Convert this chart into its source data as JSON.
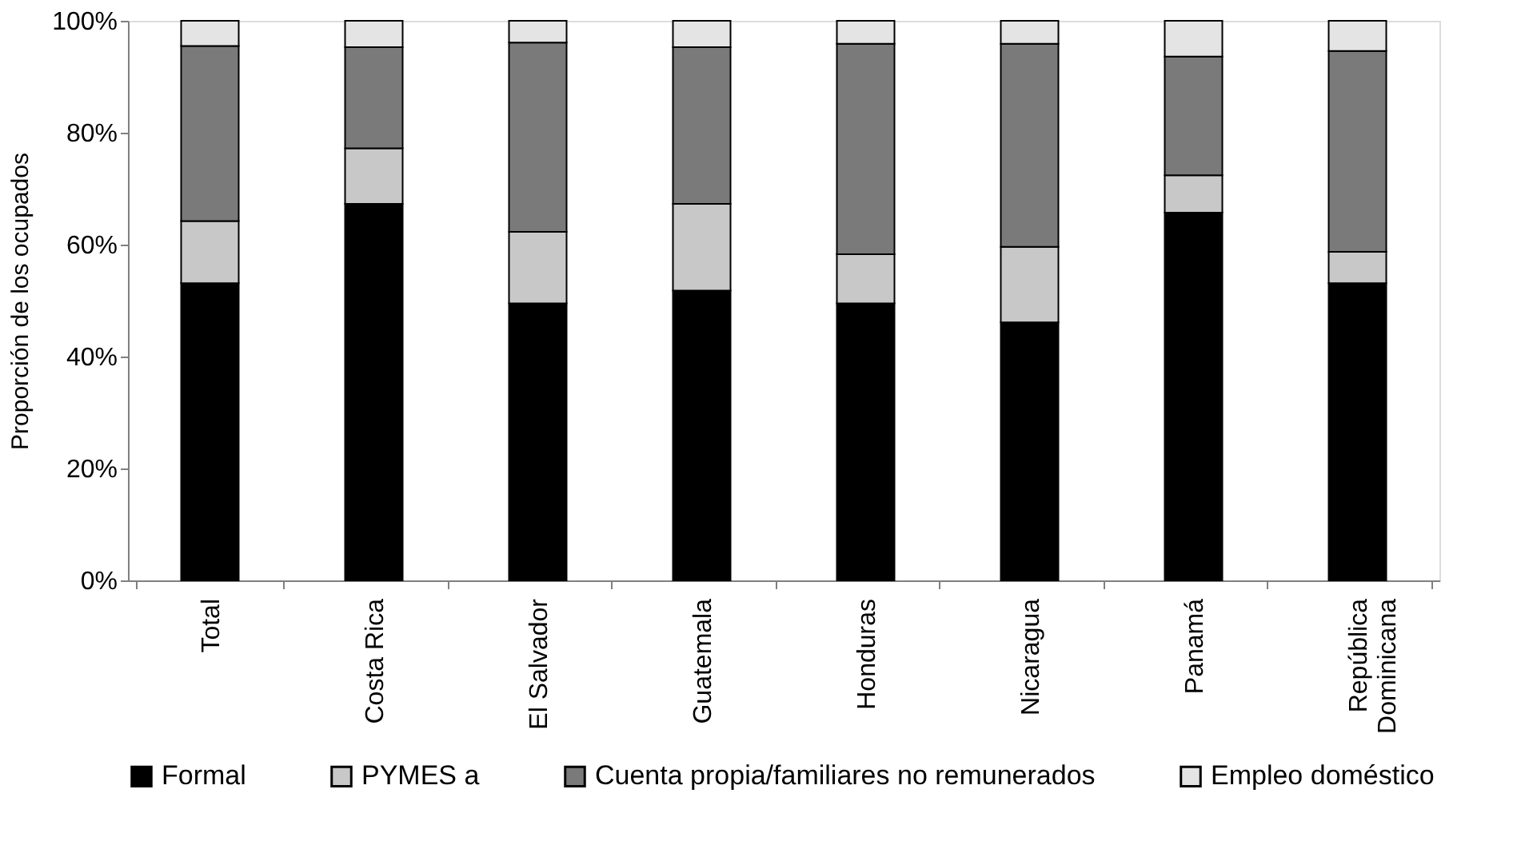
{
  "chart_data": {
    "type": "bar",
    "stacked": true,
    "ylabel": "Proporción de los ocupados",
    "categories": [
      "Total",
      "Costa Rica",
      "El Salvador",
      "Guatemala",
      "Honduras",
      "Nicaragua",
      "Panamá",
      "República Dominicana"
    ],
    "series": [
      {
        "name": "Formal",
        "color": "#000000",
        "values": [
          53.1,
          67.3,
          49.5,
          51.8,
          49.5,
          46.1,
          65.7,
          53.1
        ]
      },
      {
        "name": "PYMES a",
        "color": "#c8c8c8",
        "values": [
          11.1,
          9.9,
          12.8,
          15.5,
          8.8,
          13.5,
          6.7,
          5.6
        ]
      },
      {
        "name": "Cuenta propia/familiares no remunerados",
        "color": "#7a7a7a",
        "values": [
          31.3,
          18.1,
          33.8,
          28.0,
          37.6,
          36.3,
          21.2,
          35.9
        ]
      },
      {
        "name": "Empleo doméstico",
        "color": "#e4e4e4",
        "values": [
          4.5,
          4.7,
          3.9,
          4.7,
          4.1,
          4.1,
          6.4,
          5.4
        ]
      }
    ],
    "ylim": [
      0,
      100
    ],
    "yticks": [
      {
        "value": 0,
        "label": "0%"
      },
      {
        "value": 20,
        "label": "20%"
      },
      {
        "value": 40,
        "label": "40%"
      },
      {
        "value": 60,
        "label": "60%"
      },
      {
        "value": 80,
        "label": "80%"
      },
      {
        "value": 100,
        "label": "100%"
      }
    ],
    "grid": false,
    "legend": "bottom"
  }
}
